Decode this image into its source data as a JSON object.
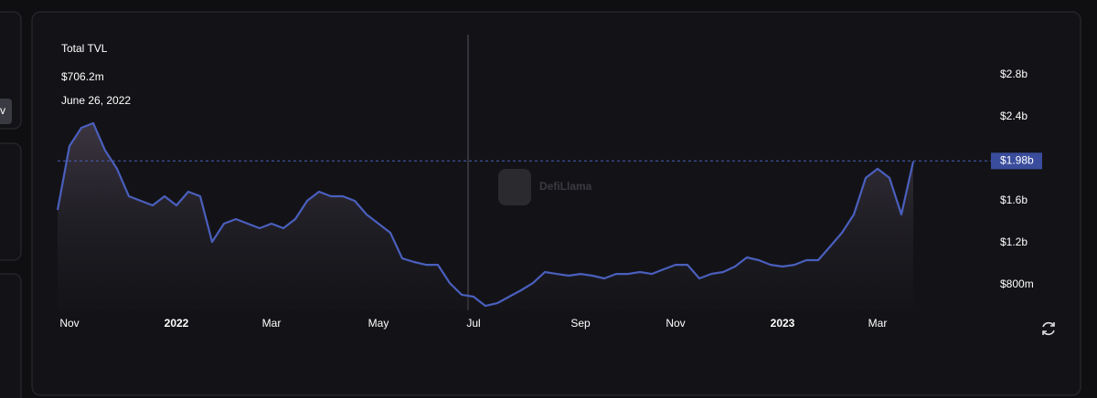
{
  "sidebar_button": "v",
  "chart_data": {
    "type": "line",
    "title": "Total TVL",
    "subtitle": "$706.2m",
    "date": "June 26, 2022",
    "watermark": "DefiLlama",
    "categories": [
      null,
      "Nov",
      null,
      null,
      null,
      null,
      null,
      null,
      null,
      null,
      "2022",
      null,
      null,
      null,
      null,
      null,
      null,
      null,
      "Mar",
      null,
      null,
      null,
      null,
      null,
      null,
      null,
      null,
      "May",
      null,
      null,
      null,
      null,
      null,
      null,
      null,
      "Jul",
      null,
      null,
      null,
      null,
      null,
      null,
      null,
      null,
      "Sep",
      null,
      null,
      null,
      null,
      null,
      null,
      null,
      "Nov",
      null,
      null,
      null,
      null,
      null,
      null,
      null,
      null,
      "2023",
      null,
      null,
      null,
      null,
      null,
      null,
      null,
      "Mar",
      null,
      null,
      null
    ],
    "series": [
      {
        "name": "Total TVL",
        "color": "#4a5fbd",
        "values": [
          1513,
          2122,
          2296,
          2340,
          2079,
          1905,
          1644,
          1600,
          1557,
          1644,
          1557,
          1687,
          1644,
          1209,
          1383,
          1426,
          1383,
          1339,
          1383,
          1339,
          1426,
          1600,
          1687,
          1644,
          1644,
          1600,
          1470,
          1383,
          1296,
          1052,
          1018,
          991,
          991,
          817,
          706,
          687,
          600,
          626,
          687,
          748,
          817,
          922,
          904,
          887,
          904,
          887,
          861,
          904,
          904,
          922,
          904,
          948,
          991,
          991,
          861,
          904,
          922,
          974,
          1061,
          1035,
          991,
          974,
          991,
          1035,
          1035,
          1165,
          1296,
          1470,
          1818,
          1905,
          1818,
          1470,
          1975
        ]
      }
    ],
    "ylim": [
      557,
      3165
    ],
    "yticks": [
      {
        "value": 800,
        "label": "$800m"
      },
      {
        "value": 1200,
        "label": "$1.2b"
      },
      {
        "value": 1600,
        "label": "$1.6b"
      },
      {
        "value": 2400,
        "label": "$2.4b"
      },
      {
        "value": 2800,
        "label": "$2.8b"
      }
    ],
    "crosshair": {
      "value": 1980,
      "label": "$1.98b"
    }
  }
}
